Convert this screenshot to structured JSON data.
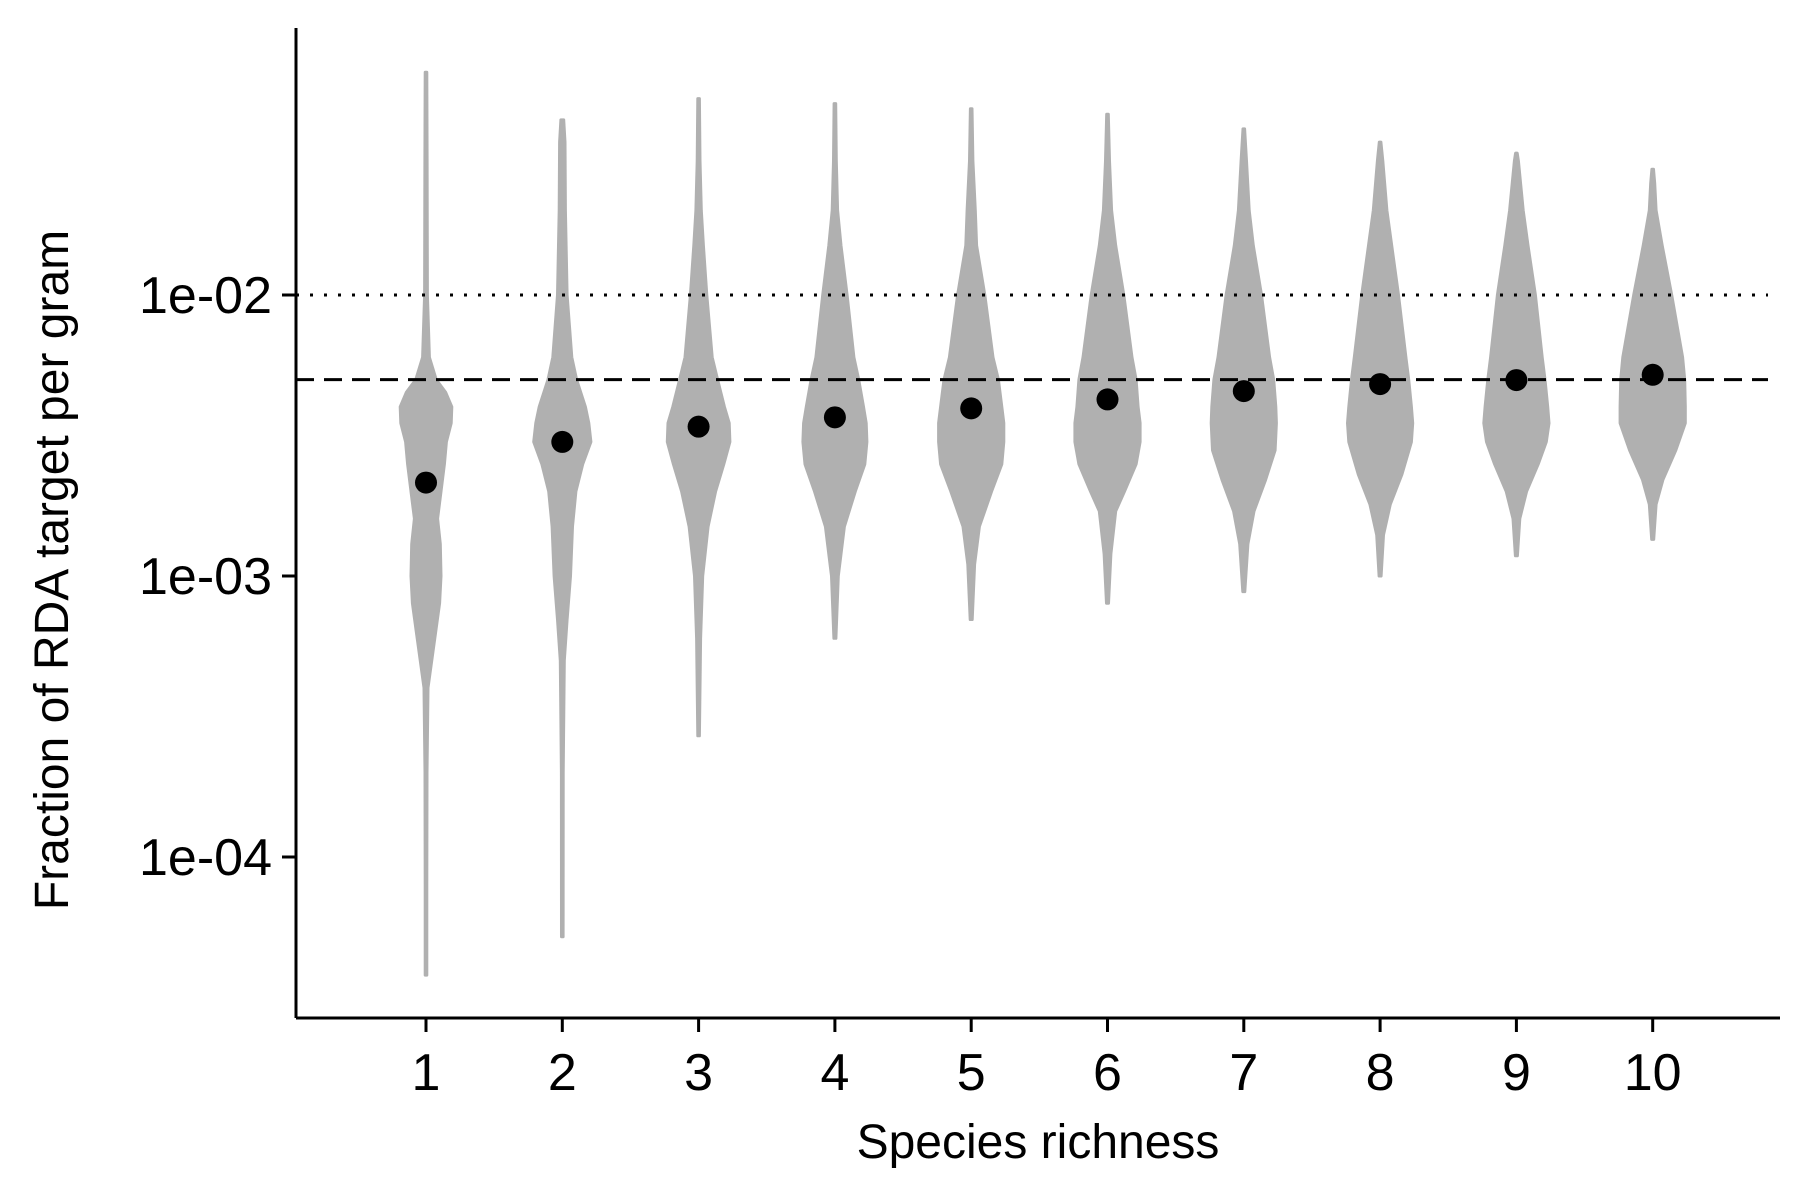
{
  "chart_data": {
    "type": "violin",
    "xlabel": "Species richness",
    "ylabel": "Fraction of RDA target per gram",
    "y_scale": "log10",
    "ylim": [
      3e-05,
      0.1
    ],
    "categories": [
      "1",
      "2",
      "3",
      "4",
      "5",
      "6",
      "7",
      "8",
      "9",
      "10"
    ],
    "x_ticks": [
      "1",
      "2",
      "3",
      "4",
      "5",
      "6",
      "7",
      "8",
      "9",
      "10"
    ],
    "y_ticks": [
      {
        "value": 0.0001,
        "label": "1e-04"
      },
      {
        "value": 0.001,
        "label": "1e-03"
      },
      {
        "value": 0.01,
        "label": "1e-02"
      }
    ],
    "reference_lines": [
      {
        "value": 0.01,
        "style": "dotted"
      },
      {
        "value": 0.005,
        "style": "dashed"
      }
    ],
    "means": [
      0.00215,
      0.003,
      0.0034,
      0.00367,
      0.00395,
      0.00425,
      0.00455,
      0.00482,
      0.00498,
      0.0052
    ],
    "violins": [
      {
        "category": "1",
        "min": 3.8e-05,
        "max": 0.062,
        "profile": [
          [
            3.8e-05,
            0.012
          ],
          [
            8e-05,
            0.012
          ],
          [
            0.0002,
            0.014
          ],
          [
            0.0004,
            0.03
          ],
          [
            0.0006,
            0.13
          ],
          [
            0.0008,
            0.2
          ],
          [
            0.001,
            0.22
          ],
          [
            0.0013,
            0.21
          ],
          [
            0.0016,
            0.17
          ],
          [
            0.002,
            0.22
          ],
          [
            0.0025,
            0.27
          ],
          [
            0.003,
            0.3
          ],
          [
            0.0035,
            0.37
          ],
          [
            0.004,
            0.38
          ],
          [
            0.0045,
            0.29
          ],
          [
            0.005,
            0.15
          ],
          [
            0.006,
            0.05
          ],
          [
            0.01,
            0.02
          ],
          [
            0.03,
            0.016
          ],
          [
            0.062,
            0.012
          ]
        ]
      },
      {
        "category": "2",
        "min": 5.2e-05,
        "max": 0.042,
        "profile": [
          [
            5.2e-05,
            0.012
          ],
          [
            0.0002,
            0.013
          ],
          [
            0.0005,
            0.03
          ],
          [
            0.0007,
            0.07
          ],
          [
            0.001,
            0.12
          ],
          [
            0.0015,
            0.15
          ],
          [
            0.002,
            0.2
          ],
          [
            0.0025,
            0.3
          ],
          [
            0.003,
            0.42
          ],
          [
            0.0035,
            0.39
          ],
          [
            0.004,
            0.34
          ],
          [
            0.005,
            0.21
          ],
          [
            0.006,
            0.14
          ],
          [
            0.01,
            0.07
          ],
          [
            0.02,
            0.045
          ],
          [
            0.035,
            0.04
          ],
          [
            0.042,
            0.02
          ]
        ]
      },
      {
        "category": "3",
        "min": 0.00027,
        "max": 0.05,
        "profile": [
          [
            0.00027,
            0.012
          ],
          [
            0.0006,
            0.03
          ],
          [
            0.001,
            0.06
          ],
          [
            0.0015,
            0.14
          ],
          [
            0.002,
            0.25
          ],
          [
            0.0025,
            0.37
          ],
          [
            0.003,
            0.46
          ],
          [
            0.0035,
            0.45
          ],
          [
            0.004,
            0.38
          ],
          [
            0.005,
            0.28
          ],
          [
            0.006,
            0.2
          ],
          [
            0.01,
            0.12
          ],
          [
            0.015,
            0.07
          ],
          [
            0.02,
            0.04
          ],
          [
            0.03,
            0.02
          ],
          [
            0.05,
            0.012
          ]
        ]
      },
      {
        "category": "4",
        "min": 0.0006,
        "max": 0.048,
        "profile": [
          [
            0.0006,
            0.015
          ],
          [
            0.001,
            0.05
          ],
          [
            0.0015,
            0.14
          ],
          [
            0.002,
            0.3
          ],
          [
            0.0025,
            0.44
          ],
          [
            0.003,
            0.47
          ],
          [
            0.0035,
            0.46
          ],
          [
            0.004,
            0.42
          ],
          [
            0.005,
            0.35
          ],
          [
            0.006,
            0.28
          ],
          [
            0.01,
            0.18
          ],
          [
            0.015,
            0.09
          ],
          [
            0.02,
            0.04
          ],
          [
            0.03,
            0.02
          ],
          [
            0.048,
            0.012
          ]
        ]
      },
      {
        "category": "5",
        "min": 0.0007,
        "max": 0.046,
        "profile": [
          [
            0.0007,
            0.015
          ],
          [
            0.0011,
            0.05
          ],
          [
            0.0015,
            0.12
          ],
          [
            0.002,
            0.3
          ],
          [
            0.0025,
            0.45
          ],
          [
            0.003,
            0.48
          ],
          [
            0.0035,
            0.48
          ],
          [
            0.004,
            0.45
          ],
          [
            0.005,
            0.4
          ],
          [
            0.006,
            0.32
          ],
          [
            0.01,
            0.2
          ],
          [
            0.015,
            0.08
          ],
          [
            0.02,
            0.06
          ],
          [
            0.03,
            0.025
          ],
          [
            0.046,
            0.012
          ]
        ]
      },
      {
        "category": "6",
        "min": 0.0008,
        "max": 0.044,
        "profile": [
          [
            0.0008,
            0.015
          ],
          [
            0.0012,
            0.05
          ],
          [
            0.0017,
            0.12
          ],
          [
            0.002,
            0.25
          ],
          [
            0.0025,
            0.42
          ],
          [
            0.003,
            0.48
          ],
          [
            0.0035,
            0.48
          ],
          [
            0.004,
            0.45
          ],
          [
            0.005,
            0.42
          ],
          [
            0.006,
            0.36
          ],
          [
            0.01,
            0.24
          ],
          [
            0.015,
            0.12
          ],
          [
            0.02,
            0.06
          ],
          [
            0.03,
            0.03
          ],
          [
            0.044,
            0.012
          ]
        ]
      },
      {
        "category": "7",
        "min": 0.00088,
        "max": 0.039,
        "profile": [
          [
            0.00088,
            0.015
          ],
          [
            0.0013,
            0.06
          ],
          [
            0.0017,
            0.15
          ],
          [
            0.0022,
            0.32
          ],
          [
            0.0028,
            0.46
          ],
          [
            0.0035,
            0.48
          ],
          [
            0.004,
            0.47
          ],
          [
            0.005,
            0.44
          ],
          [
            0.006,
            0.38
          ],
          [
            0.01,
            0.26
          ],
          [
            0.015,
            0.14
          ],
          [
            0.02,
            0.08
          ],
          [
            0.03,
            0.04
          ],
          [
            0.039,
            0.012
          ]
        ]
      },
      {
        "category": "8",
        "min": 0.001,
        "max": 0.035,
        "profile": [
          [
            0.001,
            0.015
          ],
          [
            0.0014,
            0.05
          ],
          [
            0.0018,
            0.15
          ],
          [
            0.0023,
            0.32
          ],
          [
            0.003,
            0.46
          ],
          [
            0.0035,
            0.48
          ],
          [
            0.004,
            0.46
          ],
          [
            0.005,
            0.42
          ],
          [
            0.006,
            0.38
          ],
          [
            0.01,
            0.27
          ],
          [
            0.015,
            0.17
          ],
          [
            0.02,
            0.1
          ],
          [
            0.03,
            0.04
          ],
          [
            0.035,
            0.012
          ]
        ]
      },
      {
        "category": "9",
        "min": 0.00118,
        "max": 0.032,
        "profile": [
          [
            0.00118,
            0.015
          ],
          [
            0.0016,
            0.05
          ],
          [
            0.002,
            0.15
          ],
          [
            0.0025,
            0.32
          ],
          [
            0.003,
            0.44
          ],
          [
            0.0035,
            0.48
          ],
          [
            0.004,
            0.46
          ],
          [
            0.005,
            0.42
          ],
          [
            0.006,
            0.38
          ],
          [
            0.01,
            0.28
          ],
          [
            0.015,
            0.17
          ],
          [
            0.02,
            0.1
          ],
          [
            0.03,
            0.03
          ],
          [
            0.032,
            0.012
          ]
        ]
      },
      {
        "category": "10",
        "min": 0.00135,
        "max": 0.028,
        "profile": [
          [
            0.00135,
            0.015
          ],
          [
            0.0018,
            0.05
          ],
          [
            0.0022,
            0.15
          ],
          [
            0.0028,
            0.34
          ],
          [
            0.0035,
            0.48
          ],
          [
            0.004,
            0.48
          ],
          [
            0.005,
            0.47
          ],
          [
            0.006,
            0.44
          ],
          [
            0.01,
            0.28
          ],
          [
            0.015,
            0.14
          ],
          [
            0.02,
            0.05
          ],
          [
            0.025,
            0.03
          ],
          [
            0.028,
            0.012
          ]
        ]
      }
    ]
  }
}
